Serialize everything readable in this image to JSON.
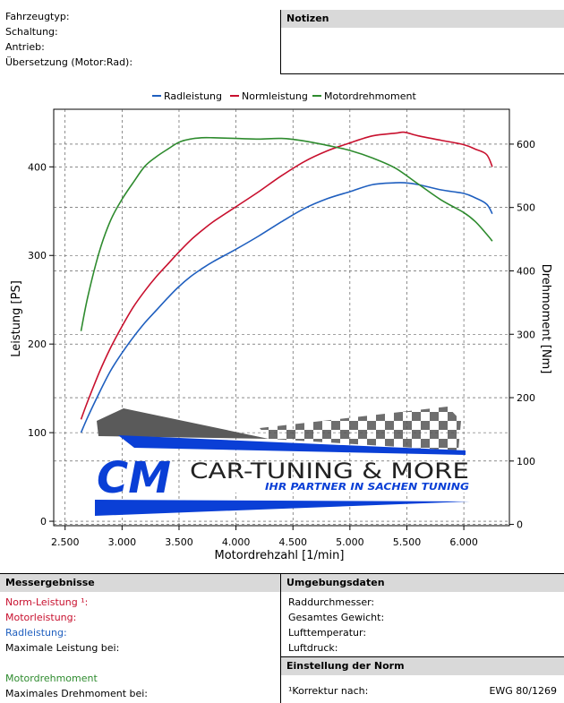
{
  "vehicle": {
    "fields": [
      "Fahrzeugtyp:",
      "Schaltung:",
      "Antrieb:",
      "Übersetzung (Motor:Rad):"
    ]
  },
  "notes": {
    "title": "Notizen"
  },
  "chart_data": {
    "type": "line",
    "legend": [
      "Radleistung",
      "Normleistung",
      "Motordrehmoment"
    ],
    "legend_position": "top",
    "xlabel": "Motordrehzahl [1/min]",
    "ylabel_left": "Leistung [PS]",
    "ylabel_right": "Drehmoment [Nm]",
    "xlim": [
      2400,
      6400
    ],
    "xticks": [
      2500,
      3000,
      3500,
      4000,
      4500,
      5000,
      5500,
      6000
    ],
    "xtick_labels": [
      "2.500",
      "3.000",
      "3.500",
      "4.000",
      "4.500",
      "5.000",
      "5.500",
      "6.000"
    ],
    "ylim_left": [
      -5,
      465
    ],
    "yticks_left": [
      0,
      100,
      200,
      300,
      400
    ],
    "ylim_right": [
      -2,
      655
    ],
    "yticks_right": [
      0,
      100,
      200,
      300,
      400,
      500,
      600
    ],
    "grid": true,
    "series": [
      {
        "name": "Radleistung",
        "color": "#1f5fbf",
        "axis": "left",
        "x": [
          2640,
          2700,
          2800,
          2900,
          3000,
          3100,
          3200,
          3300,
          3400,
          3500,
          3600,
          3700,
          3800,
          4000,
          4200,
          4400,
          4600,
          4800,
          5000,
          5200,
          5400,
          5480,
          5600,
          5800,
          6000,
          6100,
          6200,
          6250
        ],
        "y": [
          100,
          118,
          145,
          170,
          190,
          208,
          224,
          238,
          252,
          265,
          276,
          285,
          293,
          307,
          322,
          338,
          353,
          364,
          372,
          380,
          382,
          382,
          380,
          374,
          370,
          365,
          358,
          347
        ]
      },
      {
        "name": "Normleistung",
        "color": "#c8102e",
        "axis": "left",
        "x": [
          2640,
          2700,
          2800,
          2900,
          3000,
          3100,
          3200,
          3300,
          3400,
          3500,
          3600,
          3700,
          3800,
          4000,
          4200,
          4400,
          4600,
          4800,
          5000,
          5200,
          5400,
          5480,
          5600,
          5800,
          6000,
          6100,
          6200,
          6250
        ],
        "y": [
          115,
          136,
          168,
          196,
          220,
          242,
          260,
          276,
          290,
          304,
          317,
          328,
          338,
          355,
          372,
          390,
          406,
          418,
          427,
          435,
          438,
          439,
          435,
          430,
          425,
          420,
          414,
          400
        ]
      },
      {
        "name": "Motordrehmoment",
        "color": "#2e8b2e",
        "axis": "right",
        "x": [
          2640,
          2700,
          2800,
          2900,
          3000,
          3100,
          3200,
          3300,
          3400,
          3500,
          3600,
          3700,
          3800,
          4000,
          4200,
          4400,
          4600,
          4800,
          5000,
          5200,
          5400,
          5600,
          5800,
          6000,
          6100,
          6200,
          6250
        ],
        "y": [
          305,
          360,
          430,
          480,
          513,
          540,
          565,
          580,
          592,
          603,
          608,
          610,
          610,
          609,
          608,
          609,
          605,
          598,
          590,
          578,
          562,
          537,
          512,
          492,
          478,
          458,
          447
        ]
      }
    ]
  },
  "logo": {
    "title": "CAR-TUNING & MORE",
    "subtitle": "IHR PARTNER IN SACHEN TUNING",
    "initials": "CM"
  },
  "results": {
    "title": "Messergebnisse",
    "norm_power": "Norm-Leistung ¹:",
    "engine_power": "Motorleistung:",
    "wheel_power": "Radleistung:",
    "max_power_at": "Maximale Leistung bei:",
    "torque": "Motordrehmoment",
    "max_torque_at": "Maximales Drehmoment bei:",
    "colors": {
      "norm": "#c8102e",
      "engine": "#c8102e",
      "wheel": "#1f5fbf",
      "torque": "#2e8b2e"
    }
  },
  "environment": {
    "title": "Umgebungsdaten",
    "fields": [
      "Raddurchmesser:",
      "Gesamtes Gewicht:",
      "Lufttemperatur:",
      "Luftdruck:"
    ]
  },
  "norm": {
    "title": "Einstellung der Norm",
    "correction_label": "¹Korrektur nach:",
    "correction_value": "EWG 80/1269"
  }
}
